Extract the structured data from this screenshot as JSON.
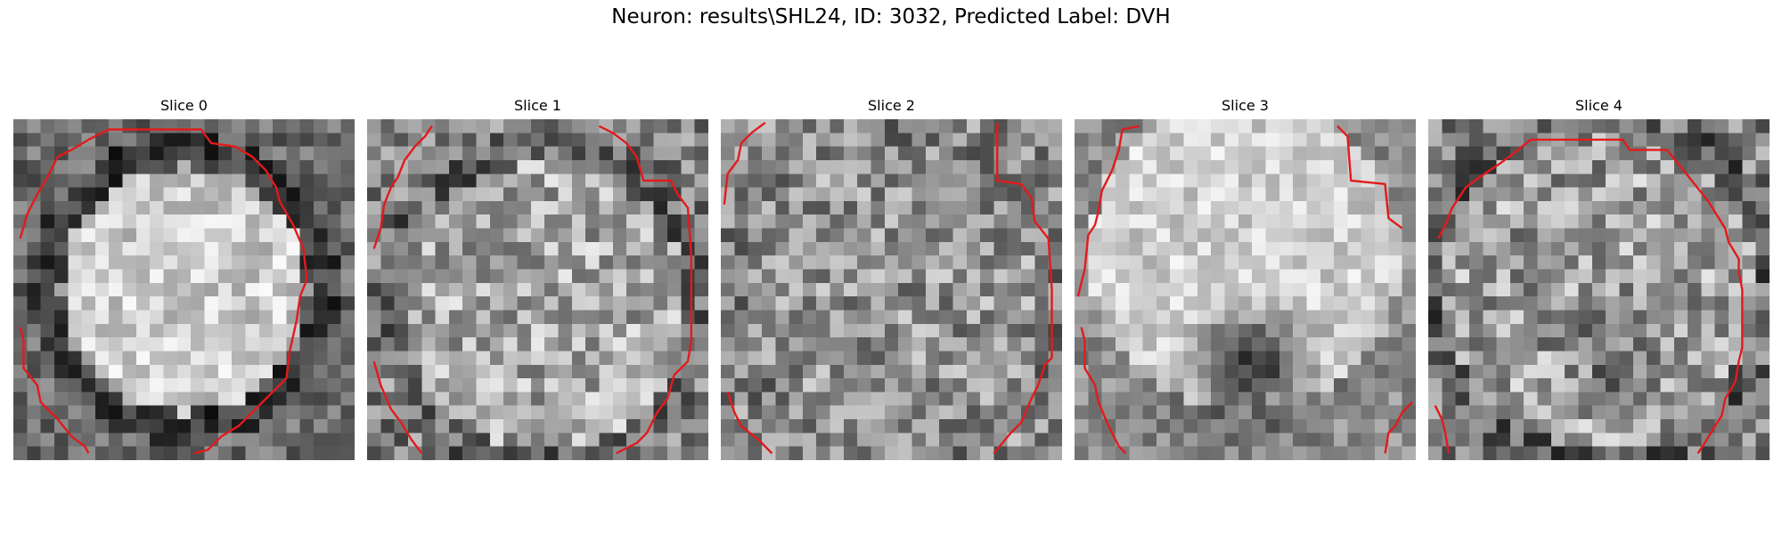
{
  "figure": {
    "title": "Neuron: results\\SHL24, ID: 3032, Predicted Label: DVH",
    "contour_color": "#e31a1c",
    "colormap": "gray",
    "grid_size": 25
  },
  "slices": [
    {
      "title": "Slice 0"
    },
    {
      "title": "Slice 1"
    },
    {
      "title": "Slice 2"
    },
    {
      "title": "Slice 3"
    },
    {
      "title": "Slice 4"
    }
  ]
}
